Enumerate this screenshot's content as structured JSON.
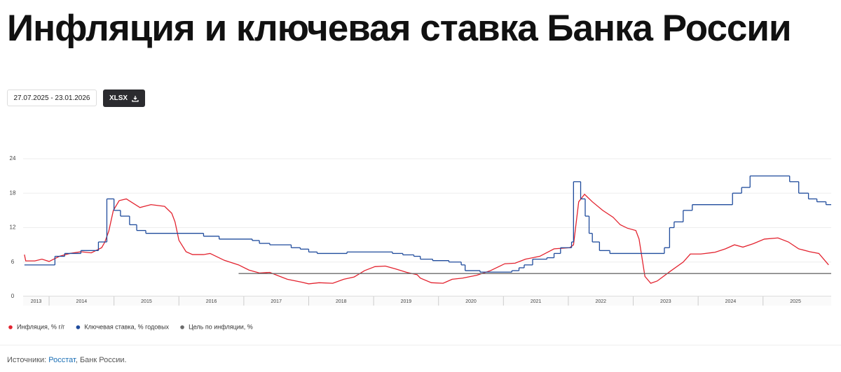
{
  "header": {
    "title": "Инфляция и ключевая ставка Банка России"
  },
  "controls": {
    "date_range": "27.07.2025 - 23.01.2026",
    "export": "XLSX"
  },
  "chart_data": {
    "type": "line",
    "xlim": [
      2013.6,
      2026.05
    ],
    "xticks": [
      {
        "value": 2013,
        "label": "2013"
      },
      {
        "value": 2014,
        "label": "2014"
      },
      {
        "value": 2015,
        "label": "2015"
      },
      {
        "value": 2016,
        "label": "2016"
      },
      {
        "value": 2017,
        "label": "2017"
      },
      {
        "value": 2018,
        "label": "2018"
      },
      {
        "value": 2019,
        "label": "2019"
      },
      {
        "value": 2020,
        "label": "2020"
      },
      {
        "value": 2021,
        "label": "2021"
      },
      {
        "value": 2022,
        "label": "2022"
      },
      {
        "value": 2023,
        "label": "2023"
      },
      {
        "value": 2024,
        "label": "2024"
      },
      {
        "value": 2025,
        "label": "2025"
      }
    ],
    "ylim": [
      0,
      24
    ],
    "yticks": [
      0,
      6,
      12,
      18,
      24
    ],
    "grid": true,
    "legend": "bottom-left",
    "series": [
      {
        "name": "Инфляция, % г/г",
        "color": "#e3232f",
        "drawstyle": "line",
        "x": [
          2013.62,
          2013.64,
          2013.78,
          2013.89,
          2014.0,
          2014.16,
          2014.32,
          2014.49,
          2014.65,
          2014.81,
          2014.86,
          2014.92,
          2014.99,
          2015.08,
          2015.19,
          2015.4,
          2015.57,
          2015.78,
          2015.89,
          2015.94,
          2016.0,
          2016.11,
          2016.21,
          2016.38,
          2016.48,
          2016.7,
          2016.92,
          2017.08,
          2017.24,
          2017.4,
          2017.51,
          2017.67,
          2017.89,
          2018.0,
          2018.16,
          2018.37,
          2018.54,
          2018.7,
          2018.86,
          2019.02,
          2019.18,
          2019.34,
          2019.51,
          2019.67,
          2019.72,
          2019.89,
          2020.07,
          2020.21,
          2020.37,
          2020.59,
          2020.8,
          2021.02,
          2021.18,
          2021.34,
          2021.56,
          2021.78,
          2022.02,
          2022.08,
          2022.16,
          2022.25,
          2022.37,
          2022.53,
          2022.69,
          2022.8,
          2022.91,
          2023.04,
          2023.09,
          2023.18,
          2023.27,
          2023.37,
          2023.56,
          2023.77,
          2023.88,
          2024.04,
          2024.26,
          2024.42,
          2024.56,
          2024.69,
          2024.85,
          2025.02,
          2025.23,
          2025.39,
          2025.55,
          2025.72,
          2025.86,
          2026.01
        ],
        "values": [
          7.3,
          6.2,
          6.2,
          6.5,
          6.1,
          7.0,
          7.5,
          7.8,
          7.6,
          8.5,
          9.5,
          11.4,
          15.0,
          16.7,
          17.0,
          15.5,
          16.0,
          15.7,
          14.5,
          13.0,
          9.8,
          7.8,
          7.3,
          7.3,
          7.5,
          6.3,
          5.5,
          4.6,
          4.1,
          4.2,
          3.7,
          3.0,
          2.5,
          2.2,
          2.4,
          2.3,
          3.0,
          3.4,
          4.5,
          5.2,
          5.3,
          4.8,
          4.2,
          3.8,
          3.2,
          2.4,
          2.3,
          3.0,
          3.2,
          3.7,
          4.5,
          5.7,
          5.8,
          6.5,
          7.0,
          8.3,
          8.5,
          9.0,
          16.5,
          17.8,
          16.5,
          15.0,
          13.8,
          12.5,
          11.9,
          11.5,
          10.0,
          3.5,
          2.3,
          2.7,
          4.3,
          6.0,
          7.4,
          7.4,
          7.7,
          8.3,
          9.0,
          8.6,
          9.2,
          10.0,
          10.2,
          9.5,
          8.3,
          7.8,
          7.5,
          5.5
        ]
      },
      {
        "name": "Ключевая ставка, % годовых",
        "color": "#1f4b9c",
        "drawstyle": "steps-post",
        "x": [
          2013.62,
          2014.09,
          2014.24,
          2014.49,
          2014.76,
          2014.89,
          2015.0,
          2015.1,
          2015.24,
          2015.35,
          2015.49,
          2016.38,
          2016.62,
          2017.13,
          2017.24,
          2017.4,
          2017.73,
          2017.87,
          2018.0,
          2018.13,
          2018.59,
          2019.29,
          2019.45,
          2019.62,
          2019.72,
          2019.91,
          2020.16,
          2020.35,
          2020.41,
          2020.64,
          2021.13,
          2021.24,
          2021.32,
          2021.45,
          2021.67,
          2021.78,
          2021.88,
          2022.05,
          2022.08,
          2022.19,
          2022.26,
          2022.32,
          2022.37,
          2022.48,
          2022.64,
          2023.48,
          2023.56,
          2023.63,
          2023.77,
          2023.91,
          2024.53,
          2024.67,
          2024.8,
          2025.41,
          2025.55,
          2025.7,
          2025.83,
          2025.97
        ],
        "values": [
          5.5,
          7.0,
          7.5,
          8.0,
          9.5,
          17.0,
          15.0,
          14.0,
          12.5,
          11.5,
          11.0,
          10.5,
          10.0,
          9.75,
          9.25,
          9.0,
          8.5,
          8.25,
          7.75,
          7.5,
          7.75,
          7.5,
          7.25,
          7.0,
          6.5,
          6.25,
          6.0,
          5.5,
          4.5,
          4.25,
          4.5,
          5.0,
          5.5,
          6.5,
          6.75,
          7.5,
          8.5,
          9.5,
          20.0,
          17.0,
          14.0,
          11.0,
          9.5,
          8.0,
          7.5,
          8.5,
          12.0,
          13.0,
          15.0,
          16.0,
          18.0,
          19.0,
          21.0,
          20.0,
          18.0,
          17.0,
          16.5,
          16.0
        ]
      },
      {
        "name": "Цель по инфляции, %",
        "color": "#6b6b6b",
        "drawstyle": "line",
        "x": [
          2016.92,
          2026.05
        ],
        "values": [
          4,
          4
        ]
      }
    ]
  },
  "footer": {
    "prefix": "Источники:",
    "link": "Росстат",
    "rest": ", Банк России."
  }
}
